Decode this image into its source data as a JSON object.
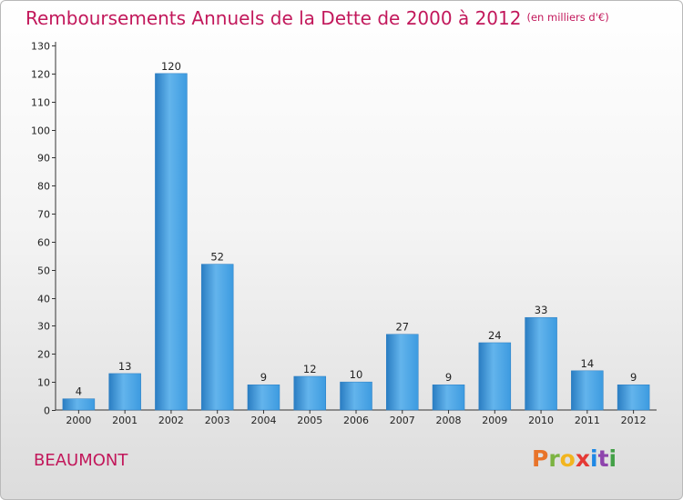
{
  "header": {
    "title": "Remboursements Annuels de la Dette de 2000 à 2012",
    "unit": "(en milliers d'€)"
  },
  "footer": {
    "commune": "BEAUMONT",
    "brand_letters": [
      "P",
      "r",
      "o",
      "x",
      "i",
      "t",
      "i"
    ],
    "brand_colors": [
      "#e8742a",
      "#7cb342",
      "#f2b51f",
      "#e53935",
      "#1e88e5",
      "#8e44ad",
      "#43a047"
    ]
  },
  "colors": {
    "bar": "#3d9be0",
    "bar_light": "#63b4ec",
    "bar_dark": "#2a7dc2",
    "title": "#c2185b",
    "axis": "#333333"
  },
  "chart_data": {
    "type": "bar",
    "categories": [
      "2000",
      "2001",
      "2002",
      "2003",
      "2004",
      "2005",
      "2006",
      "2007",
      "2008",
      "2009",
      "2010",
      "2011",
      "2012"
    ],
    "values": [
      4,
      13,
      120,
      52,
      9,
      12,
      10,
      27,
      9,
      24,
      33,
      14,
      9
    ],
    "ylim": [
      0,
      130
    ],
    "yticks": [
      0,
      10,
      20,
      30,
      40,
      50,
      60,
      70,
      80,
      90,
      100,
      110,
      120,
      130
    ],
    "grid": false,
    "legend": "none"
  }
}
